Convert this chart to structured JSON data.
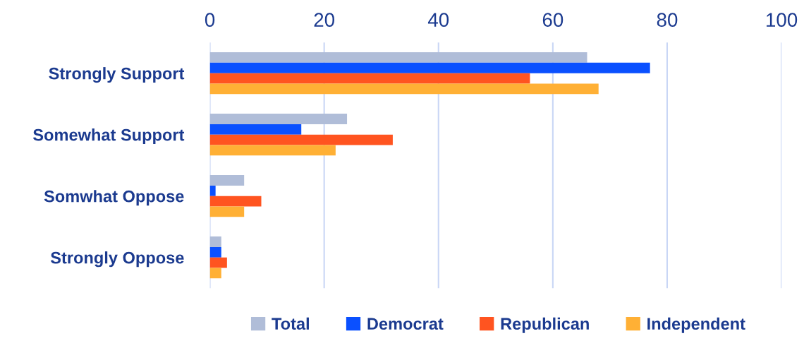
{
  "chart_data": {
    "type": "bar",
    "orientation": "horizontal",
    "categories": [
      "Strongly Support",
      "Somewhat Support",
      "Somwhat Oppose",
      "Strongly Oppose"
    ],
    "series": [
      {
        "name": "Total",
        "color": "#b0bdd8",
        "values": [
          66,
          24,
          6,
          2
        ]
      },
      {
        "name": "Democrat",
        "color": "#0a50ff",
        "values": [
          77,
          16,
          1,
          2
        ]
      },
      {
        "name": "Republican",
        "color": "#ff5420",
        "values": [
          56,
          32,
          9,
          3
        ]
      },
      {
        "name": "Independent",
        "color": "#ffb035",
        "values": [
          68,
          22,
          6,
          2
        ]
      }
    ],
    "xlim": [
      0,
      100
    ],
    "xticks": [
      0,
      20,
      40,
      60,
      80,
      100
    ],
    "grid": "x",
    "legend": "bottom"
  }
}
